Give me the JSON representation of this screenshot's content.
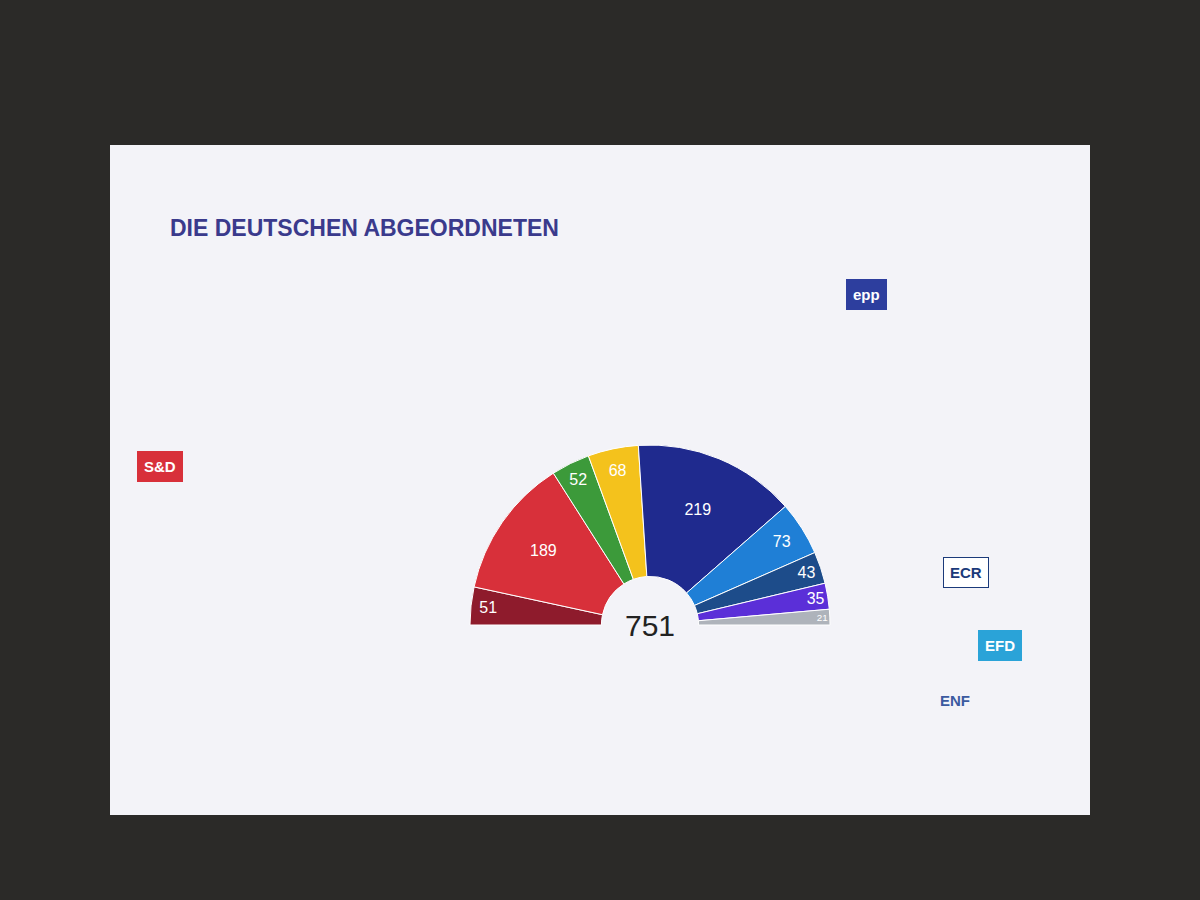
{
  "chart_data": {
    "type": "pie",
    "title": "DIE DEUTSCHEN ABGEORDNETEN",
    "values": [
      51,
      189,
      52,
      68,
      219,
      73,
      43,
      35,
      21
    ],
    "colors": [
      "#8e1b2c",
      "#d8303a",
      "#3c9a3a",
      "#f4c21c",
      "#1f2a8e",
      "#1f7fd6",
      "#1d4c8a",
      "#5b2fd8",
      "#aeb3bb"
    ],
    "data_labels": true,
    "total": 751,
    "annotations": [
      "S&D",
      "epp",
      "ECR",
      "EFD",
      "ENF"
    ]
  }
}
